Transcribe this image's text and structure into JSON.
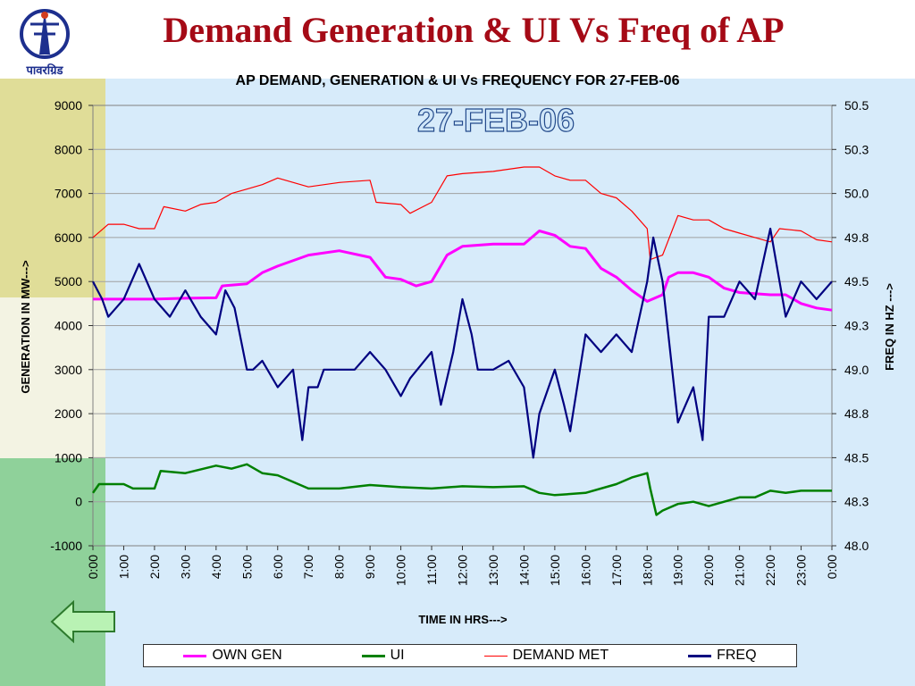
{
  "slide": {
    "title": "Demand Generation & UI Vs Freq of AP",
    "logo_text": "पावरग्रिड"
  },
  "chart_data": {
    "type": "line",
    "title": "AP  DEMAND, GENERATION & UI Vs FREQUENCY FOR 27-FEB-06",
    "annotation": "27-FEB-06",
    "xlabel": "TIME IN HRS--->",
    "ylabel": "GENERATION IN MW--->",
    "y2label": "FREQ IN HZ --->",
    "x_ticks": [
      "0:00",
      "1:00",
      "2:00",
      "3:00",
      "4:00",
      "5:00",
      "6:00",
      "7:00",
      "8:00",
      "9:00",
      "10:00",
      "11:00",
      "12:00",
      "13:00",
      "14:00",
      "15:00",
      "16:00",
      "17:00",
      "18:00",
      "19:00",
      "20:00",
      "21:00",
      "22:00",
      "23:00",
      "0:00"
    ],
    "y_ticks": [
      "9000",
      "8000",
      "7000",
      "6000",
      "5000",
      "4000",
      "3000",
      "2000",
      "1000",
      "0",
      "-1000"
    ],
    "y2_ticks": [
      "50.5",
      "50.3",
      "50.0",
      "49.8",
      "49.5",
      "49.3",
      "49.0",
      "48.8",
      "48.5",
      "48.3",
      "48.0"
    ],
    "ylim": [
      -1000,
      9000
    ],
    "y2lim": [
      48.0,
      50.5
    ],
    "xlim": [
      0,
      24
    ],
    "grid": "horizontal",
    "legend_position": "bottom",
    "series": [
      {
        "name": "OWN GEN",
        "axis": "left",
        "color": "#ff00ff",
        "width": 3,
        "points": [
          [
            0,
            4600
          ],
          [
            1,
            4600
          ],
          [
            2,
            4600
          ],
          [
            3,
            4620
          ],
          [
            4,
            4630
          ],
          [
            4.2,
            4900
          ],
          [
            5,
            4950
          ],
          [
            5.5,
            5200
          ],
          [
            6,
            5350
          ],
          [
            7,
            5600
          ],
          [
            8,
            5700
          ],
          [
            9,
            5550
          ],
          [
            9.5,
            5100
          ],
          [
            10,
            5050
          ],
          [
            10.5,
            4900
          ],
          [
            11,
            5000
          ],
          [
            11.5,
            5600
          ],
          [
            12,
            5800
          ],
          [
            13,
            5850
          ],
          [
            14,
            5850
          ],
          [
            14.5,
            6150
          ],
          [
            15,
            6050
          ],
          [
            15.5,
            5800
          ],
          [
            16,
            5750
          ],
          [
            16.5,
            5300
          ],
          [
            17,
            5100
          ],
          [
            17.5,
            4800
          ],
          [
            18,
            4550
          ],
          [
            18.5,
            4700
          ],
          [
            18.7,
            5100
          ],
          [
            19,
            5200
          ],
          [
            19.5,
            5200
          ],
          [
            20,
            5100
          ],
          [
            20.5,
            4850
          ],
          [
            21,
            4750
          ],
          [
            22,
            4700
          ],
          [
            22.5,
            4700
          ],
          [
            23,
            4500
          ],
          [
            23.5,
            4400
          ],
          [
            24,
            4350
          ]
        ]
      },
      {
        "name": "UI",
        "axis": "left",
        "color": "#008000",
        "width": 2.5,
        "points": [
          [
            0,
            200
          ],
          [
            0.2,
            400
          ],
          [
            1,
            400
          ],
          [
            1.3,
            300
          ],
          [
            2,
            300
          ],
          [
            2.2,
            700
          ],
          [
            3,
            650
          ],
          [
            3.3,
            700
          ],
          [
            4,
            820
          ],
          [
            4.5,
            750
          ],
          [
            5,
            850
          ],
          [
            5.5,
            650
          ],
          [
            6,
            600
          ],
          [
            7,
            300
          ],
          [
            8,
            300
          ],
          [
            9,
            380
          ],
          [
            10,
            330
          ],
          [
            11,
            300
          ],
          [
            12,
            350
          ],
          [
            13,
            330
          ],
          [
            14,
            350
          ],
          [
            14.5,
            200
          ],
          [
            15,
            150
          ],
          [
            16,
            200
          ],
          [
            17,
            400
          ],
          [
            17.5,
            550
          ],
          [
            18,
            650
          ],
          [
            18.1,
            300
          ],
          [
            18.3,
            -300
          ],
          [
            18.5,
            -200
          ],
          [
            19,
            -50
          ],
          [
            19.5,
            0
          ],
          [
            20,
            -100
          ],
          [
            21,
            100
          ],
          [
            21.5,
            100
          ],
          [
            22,
            250
          ],
          [
            22.5,
            200
          ],
          [
            23,
            250
          ],
          [
            24,
            250
          ]
        ]
      },
      {
        "name": "DEMAND MET",
        "axis": "left",
        "color": "#ff0000",
        "width": 1.2,
        "points": [
          [
            0,
            6000
          ],
          [
            0.5,
            6300
          ],
          [
            1,
            6300
          ],
          [
            1.5,
            6200
          ],
          [
            2,
            6200
          ],
          [
            2.3,
            6700
          ],
          [
            3,
            6600
          ],
          [
            3.5,
            6750
          ],
          [
            4,
            6800
          ],
          [
            4.5,
            7000
          ],
          [
            5,
            7100
          ],
          [
            5.5,
            7200
          ],
          [
            6,
            7350
          ],
          [
            7,
            7150
          ],
          [
            8,
            7250
          ],
          [
            9,
            7300
          ],
          [
            9.2,
            6800
          ],
          [
            10,
            6750
          ],
          [
            10.3,
            6550
          ],
          [
            11,
            6800
          ],
          [
            11.5,
            7400
          ],
          [
            12,
            7450
          ],
          [
            13,
            7500
          ],
          [
            14,
            7600
          ],
          [
            14.5,
            7600
          ],
          [
            15,
            7400
          ],
          [
            15.5,
            7300
          ],
          [
            16,
            7300
          ],
          [
            16.5,
            7000
          ],
          [
            17,
            6900
          ],
          [
            17.5,
            6600
          ],
          [
            18,
            6200
          ],
          [
            18.1,
            5500
          ],
          [
            18.5,
            5600
          ],
          [
            19,
            6500
          ],
          [
            19.5,
            6400
          ],
          [
            20,
            6400
          ],
          [
            20.5,
            6200
          ],
          [
            21,
            6100
          ],
          [
            21.5,
            6000
          ],
          [
            22,
            5900
          ],
          [
            22.3,
            6200
          ],
          [
            23,
            6150
          ],
          [
            23.5,
            5950
          ],
          [
            24,
            5900
          ]
        ]
      },
      {
        "name": "FREQ",
        "axis": "right",
        "color": "#000080",
        "width": 2.2,
        "points": [
          [
            0,
            49.5
          ],
          [
            0.3,
            49.4
          ],
          [
            0.5,
            49.3
          ],
          [
            1,
            49.4
          ],
          [
            1.5,
            49.6
          ],
          [
            2,
            49.4
          ],
          [
            2.5,
            49.3
          ],
          [
            3,
            49.45
          ],
          [
            3.5,
            49.3
          ],
          [
            4,
            49.2
          ],
          [
            4.3,
            49.45
          ],
          [
            4.6,
            49.35
          ],
          [
            5,
            49.0
          ],
          [
            5.2,
            49.0
          ],
          [
            5.5,
            49.05
          ],
          [
            6,
            48.9
          ],
          [
            6.5,
            49.0
          ],
          [
            6.8,
            48.6
          ],
          [
            7,
            48.9
          ],
          [
            7.3,
            48.9
          ],
          [
            7.5,
            49.0
          ],
          [
            8,
            49.0
          ],
          [
            8.5,
            49.0
          ],
          [
            9,
            49.1
          ],
          [
            9.5,
            49.0
          ],
          [
            10,
            48.85
          ],
          [
            10.3,
            48.95
          ],
          [
            11,
            49.1
          ],
          [
            11.3,
            48.8
          ],
          [
            11.7,
            49.1
          ],
          [
            12,
            49.4
          ],
          [
            12.3,
            49.2
          ],
          [
            12.5,
            49.0
          ],
          [
            13,
            49.0
          ],
          [
            13.5,
            49.05
          ],
          [
            14,
            48.9
          ],
          [
            14.3,
            48.5
          ],
          [
            14.5,
            48.75
          ],
          [
            15,
            49.0
          ],
          [
            15.3,
            48.8
          ],
          [
            15.5,
            48.65
          ],
          [
            16,
            49.2
          ],
          [
            16.5,
            49.1
          ],
          [
            17,
            49.2
          ],
          [
            17.5,
            49.1
          ],
          [
            18,
            49.5
          ],
          [
            18.2,
            49.75
          ],
          [
            18.5,
            49.5
          ],
          [
            19,
            48.7
          ],
          [
            19.5,
            48.9
          ],
          [
            19.8,
            48.6
          ],
          [
            20,
            49.3
          ],
          [
            20.5,
            49.3
          ],
          [
            21,
            49.5
          ],
          [
            21.5,
            49.4
          ],
          [
            22,
            49.8
          ],
          [
            22.3,
            49.5
          ],
          [
            22.5,
            49.3
          ],
          [
            23,
            49.5
          ],
          [
            23.5,
            49.4
          ],
          [
            24,
            49.5
          ]
        ]
      }
    ]
  }
}
